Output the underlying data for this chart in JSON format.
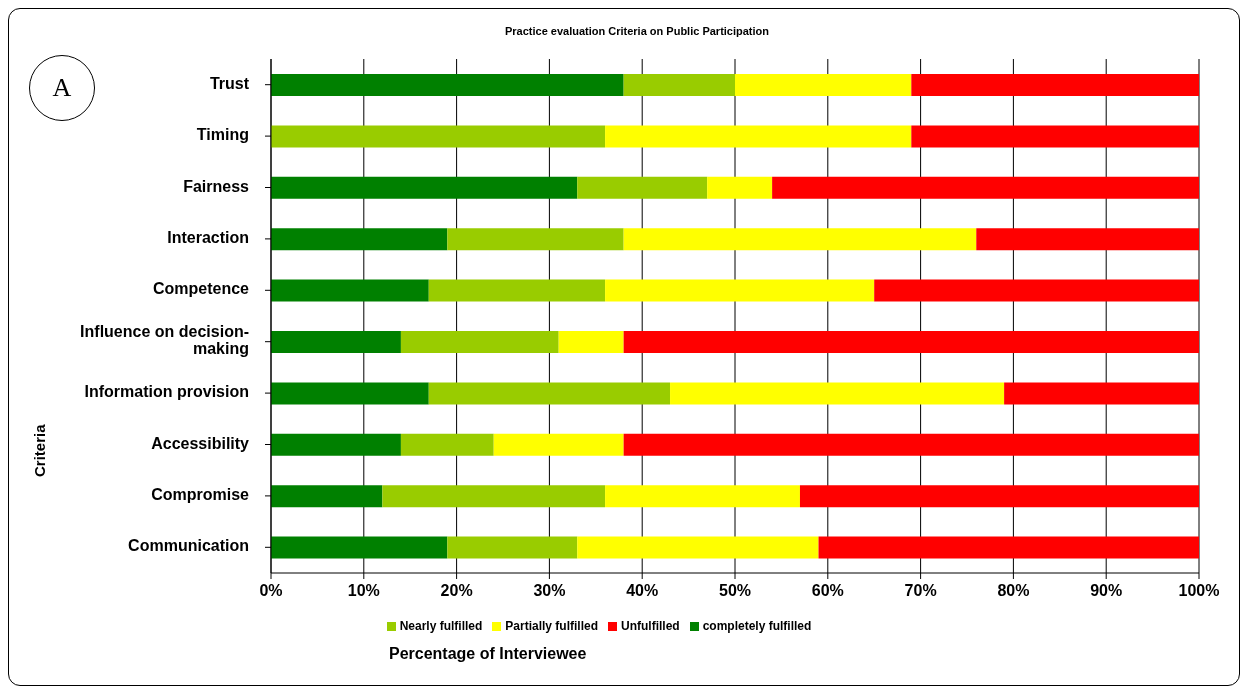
{
  "chart_data": {
    "type": "bar",
    "orientation": "horizontal",
    "stacked": true,
    "title": "Practice evaluation Criteria on Public Participation",
    "xlabel": "Percentage of Interviewee",
    "ylabel": "Criteria",
    "annotations": [
      "A"
    ],
    "categories": [
      "Trust",
      "Timing",
      "Fairness",
      "Interaction",
      "Competence",
      "Influence on decision-making",
      "Information provision",
      "Accessibility",
      "Compromise",
      "Communication"
    ],
    "series": [
      {
        "name": "completely fulfilled",
        "color": "#008000",
        "values": [
          38,
          0,
          33,
          19,
          17,
          14,
          17,
          14,
          12,
          19
        ]
      },
      {
        "name": "Nearly fulfilled",
        "color": "#99cc00",
        "values": [
          12,
          36,
          14,
          19,
          19,
          17,
          26,
          10,
          24,
          14
        ]
      },
      {
        "name": "Partially fulfilled",
        "color": "#ffff00",
        "values": [
          19,
          33,
          7,
          38,
          29,
          7,
          36,
          14,
          21,
          26
        ]
      },
      {
        "name": "Unfulfilled",
        "color": "#ff0000",
        "values": [
          31,
          31,
          46,
          24,
          35,
          62,
          21,
          62,
          43,
          41
        ]
      }
    ],
    "xlim": [
      0,
      100
    ],
    "xticks": [
      {
        "value": 0,
        "label": "0%"
      },
      {
        "value": 10,
        "label": "10%"
      },
      {
        "value": 20,
        "label": "20%"
      },
      {
        "value": 30,
        "label": "30%"
      },
      {
        "value": 40,
        "label": "40%"
      },
      {
        "value": 50,
        "label": "50%"
      },
      {
        "value": 60,
        "label": "60%"
      },
      {
        "value": 70,
        "label": "70%"
      },
      {
        "value": 80,
        "label": "80%"
      },
      {
        "value": 90,
        "label": "90%"
      },
      {
        "value": 100,
        "label": "100%"
      }
    ],
    "grid": "x",
    "legend": "bottom"
  }
}
